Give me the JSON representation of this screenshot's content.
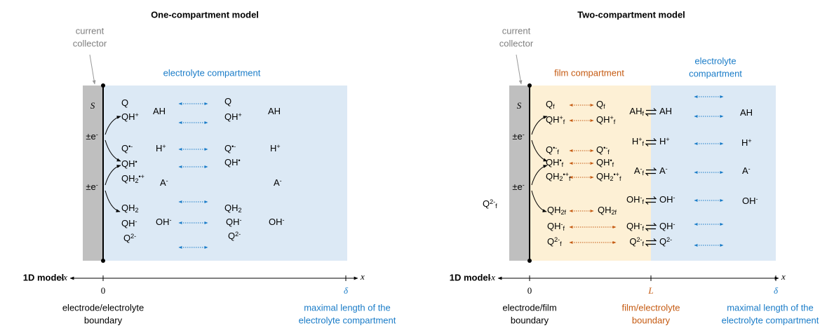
{
  "panels": [
    {
      "title": "One-compartment model",
      "collector": [
        "current",
        "collector"
      ],
      "compartments": [
        [
          "electrolyte compartment"
        ]
      ],
      "surface": "S",
      "electrons": [
        [
          {
            "text": "±e"
          },
          {
            "sup": "-"
          }
        ],
        [
          {
            "text": "±e"
          },
          {
            "sup": "-"
          }
        ]
      ],
      "species": [
        [
          {
            "text": "Q"
          }
        ],
        [
          {
            "text": "QH"
          },
          {
            "sup": "+"
          }
        ],
        [
          {
            "text": "Q"
          },
          {
            "sup": "•-"
          }
        ],
        [
          {
            "text": "QH"
          },
          {
            "sup": "•"
          }
        ],
        [
          {
            "text": "QH"
          },
          {
            "sub": "2"
          },
          {
            "sup": "•+"
          }
        ],
        [
          {
            "text": "QH"
          },
          {
            "sub": "2"
          }
        ],
        [
          {
            "text": "QH"
          },
          {
            "sup": "-"
          }
        ],
        [
          {
            "text": "Q"
          },
          {
            "sup": "2-"
          }
        ],
        [
          {
            "text": "AH"
          }
        ],
        [
          {
            "text": "H"
          },
          {
            "sup": "+"
          }
        ],
        [
          {
            "text": "A"
          },
          {
            "sup": "-"
          }
        ],
        [
          {
            "text": "OH"
          },
          {
            "sup": "-"
          }
        ],
        [
          {
            "text": "Q"
          }
        ],
        [
          {
            "text": "QH"
          },
          {
            "sup": "+"
          }
        ],
        [
          {
            "text": "Q"
          },
          {
            "sup": "•-"
          }
        ],
        [
          {
            "text": "QH"
          },
          {
            "sup": "•"
          }
        ],
        [
          {
            "text": "QH"
          },
          {
            "sub": "2"
          }
        ],
        [
          {
            "text": "QH"
          },
          {
            "sup": "-"
          }
        ],
        [
          {
            "text": "Q"
          },
          {
            "sup": "2-"
          }
        ],
        [
          {
            "text": "AH"
          }
        ],
        [
          {
            "text": "H"
          },
          {
            "sup": "+"
          }
        ],
        [
          {
            "text": "A"
          },
          {
            "sup": "-"
          }
        ],
        [
          {
            "text": "OH"
          },
          {
            "sup": "-"
          }
        ]
      ],
      "axis_label": "1D model",
      "x_negative": "-x",
      "x_positive": "x",
      "ticks": [
        "0",
        "δ"
      ],
      "captions": [
        [
          "electrode/electrolyte",
          "boundary"
        ],
        [
          "maximal length of the",
          "electrolyte compartment"
        ]
      ]
    },
    {
      "title": "Two-compartment model",
      "collector": [
        "current",
        "collector"
      ],
      "compartments": [
        [
          "film compartment"
        ],
        [
          "electrolyte",
          "compartment"
        ]
      ],
      "surface": "S",
      "electrons": [
        [
          {
            "text": "±e"
          },
          {
            "sup": "-"
          }
        ],
        [
          {
            "text": "±e"
          },
          {
            "sup": "-"
          }
        ]
      ],
      "species": [
        [
          {
            "text": "Q"
          },
          {
            "sub": "f"
          }
        ],
        [
          {
            "text": "QH"
          },
          {
            "sup": "+"
          },
          {
            "sub": "f"
          }
        ],
        [
          {
            "text": "Q"
          },
          {
            "sup": "•-"
          },
          {
            "sub": "f"
          }
        ],
        [
          {
            "text": "QH"
          },
          {
            "sup": "•"
          },
          {
            "sub": "f"
          }
        ],
        [
          {
            "text": "QH"
          },
          {
            "sub": "2"
          },
          {
            "sup": "•+"
          },
          {
            "sub": "f"
          }
        ],
        [
          {
            "text": "QH"
          },
          {
            "sub": "2f"
          }
        ],
        [
          {
            "text": "QH"
          },
          {
            "sup": "-"
          },
          {
            "sub": "f"
          }
        ],
        [
          {
            "text": "Q"
          },
          {
            "sup": "2-"
          },
          {
            "sub": "f"
          }
        ],
        [
          {
            "text": "Q"
          },
          {
            "sub": "f"
          }
        ],
        [
          {
            "text": "QH"
          },
          {
            "sup": "+"
          },
          {
            "sub": "f"
          }
        ],
        [
          {
            "text": "Q"
          },
          {
            "sup": "•-"
          },
          {
            "sub": "f"
          }
        ],
        [
          {
            "text": "QH"
          },
          {
            "sup": "•"
          },
          {
            "sub": "f"
          }
        ],
        [
          {
            "text": "QH"
          },
          {
            "sub": "2"
          },
          {
            "sup": "•+"
          },
          {
            "sub": "f"
          }
        ],
        [
          {
            "text": "QH"
          },
          {
            "sub": "2f"
          }
        ],
        [
          {
            "text": "AH"
          },
          {
            "sub": "f"
          }
        ],
        [
          {
            "text": "H"
          },
          {
            "sup": "+"
          },
          {
            "sub": "f"
          }
        ],
        [
          {
            "text": "A"
          },
          {
            "sup": "-"
          },
          {
            "sub": "f"
          }
        ],
        [
          {
            "text": "OH"
          },
          {
            "sup": "-"
          },
          {
            "sub": "f"
          }
        ],
        [
          {
            "text": "QH"
          },
          {
            "sup": "-"
          },
          {
            "sub": "f"
          }
        ],
        [
          {
            "text": "Q"
          },
          {
            "sup": "2-"
          },
          {
            "sub": "f"
          }
        ],
        [
          {
            "text": "AH"
          }
        ],
        [
          {
            "text": "H"
          },
          {
            "sup": "+"
          }
        ],
        [
          {
            "text": "A"
          },
          {
            "sup": "-"
          }
        ],
        [
          {
            "text": "OH"
          },
          {
            "sup": "-"
          }
        ],
        [
          {
            "text": "QH"
          },
          {
            "sup": "-"
          }
        ],
        [
          {
            "text": "Q"
          },
          {
            "sup": "2-"
          }
        ],
        [
          {
            "text": "AH"
          }
        ],
        [
          {
            "text": "H"
          },
          {
            "sup": "+"
          }
        ],
        [
          {
            "text": "A"
          },
          {
            "sup": "-"
          }
        ],
        [
          {
            "text": "OH"
          },
          {
            "sup": "-"
          }
        ],
        [
          {
            "text": "Q"
          },
          {
            "sup": "2-"
          },
          {
            "sub": "f"
          }
        ]
      ],
      "axis_label": "1D model",
      "x_negative": "-x",
      "x_positive": "x",
      "ticks": [
        "0",
        "L",
        "δ"
      ],
      "captions": [
        [
          "electrode/film",
          "boundary"
        ],
        [
          "film/electrolyte",
          "boundary"
        ],
        [
          "maximal length of the",
          "electrolyte compartment"
        ]
      ]
    }
  ]
}
